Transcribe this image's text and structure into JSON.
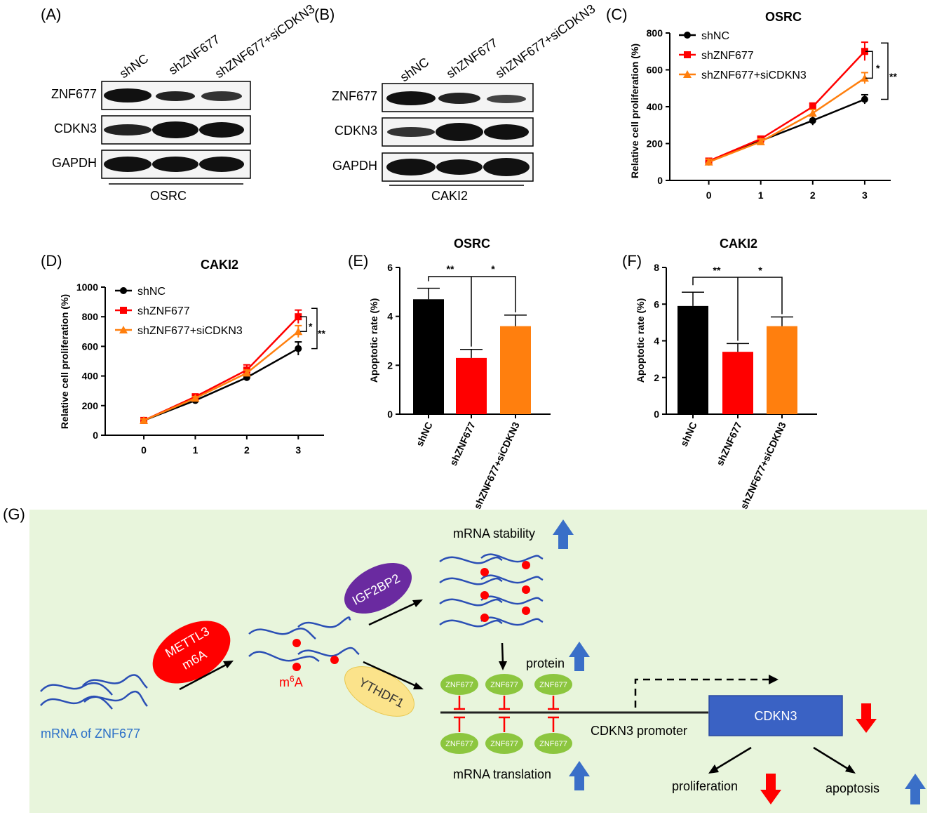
{
  "panels": {
    "A": "(A)",
    "B": "(B)",
    "C": "(C)",
    "D": "(D)",
    "E": "(E)",
    "F": "(F)",
    "G": "(G)"
  },
  "blots": [
    {
      "lanes": [
        "shNC",
        "shZNF677",
        "shZNF677+siCDKN3"
      ],
      "rows": [
        "ZNF677",
        "CDKN3",
        "GAPDH"
      ],
      "cell_line": "OSRC"
    },
    {
      "lanes": [
        "shNC",
        "shZNF677",
        "shZNF677+siCDKN3"
      ],
      "rows": [
        "ZNF677",
        "CDKN3",
        "GAPDH"
      ],
      "cell_line": "CAKI2"
    }
  ],
  "colors": {
    "shNC": "#000000",
    "shZNF677": "#ff0000",
    "siCDKN3": "#ff7f0e",
    "diagram_bg": "#e8f5dc",
    "mrna": "#2b4fb5",
    "m6a": "#ff0000",
    "znf_node": "#8cc63f",
    "cdkn3_box": "#3a62c4",
    "up_arrow": "#3a6fc8",
    "down_arrow": "#ff0000"
  },
  "chart_data": [
    {
      "panel": "C",
      "type": "line",
      "title": "OSRC",
      "ylabel": "Relative cell proliferation (%)",
      "x": [
        0,
        1,
        2,
        3
      ],
      "ylim": [
        0,
        800
      ],
      "yticks": [
        0,
        200,
        400,
        600,
        800
      ],
      "series": [
        {
          "name": "shNC",
          "values": [
            100,
            215,
            325,
            440
          ],
          "err": [
            15,
            15,
            25,
            25
          ]
        },
        {
          "name": "shZNF677",
          "values": [
            105,
            225,
            400,
            700
          ],
          "err": [
            15,
            15,
            20,
            50
          ]
        },
        {
          "name": "shZNF677+siCDKN3",
          "values": [
            100,
            210,
            365,
            555
          ],
          "err": [
            15,
            15,
            20,
            30
          ]
        }
      ],
      "significance": [
        {
          "label": "*",
          "between": "shZNF677 vs shZNF677+siCDKN3"
        },
        {
          "label": "**",
          "between": "shZNF677 vs shNC"
        }
      ]
    },
    {
      "panel": "D",
      "type": "line",
      "title": "CAKI2",
      "ylabel": "Relative cell proliferation (%)",
      "x": [
        0,
        1,
        2,
        3
      ],
      "ylim": [
        0,
        1000
      ],
      "yticks": [
        0,
        200,
        400,
        600,
        800,
        1000
      ],
      "series": [
        {
          "name": "shNC",
          "values": [
            100,
            235,
            390,
            585
          ],
          "err": [
            10,
            10,
            20,
            45
          ]
        },
        {
          "name": "shZNF677",
          "values": [
            100,
            260,
            440,
            800
          ],
          "err": [
            10,
            10,
            35,
            45
          ]
        },
        {
          "name": "shZNF677+siCDKN3",
          "values": [
            100,
            250,
            420,
            700
          ],
          "err": [
            10,
            10,
            20,
            40
          ]
        }
      ],
      "significance": [
        {
          "label": "*",
          "between": "shZNF677 vs shZNF677+siCDKN3"
        },
        {
          "label": "**",
          "between": "shZNF677 vs shNC"
        }
      ]
    },
    {
      "panel": "E",
      "type": "bar",
      "title": "OSRC",
      "ylabel": "Apoptotic rate (%)",
      "categories": [
        "shNC",
        "shZNF677",
        "shZNF677+siCDKN3"
      ],
      "values": [
        4.7,
        2.3,
        3.6
      ],
      "err": [
        0.45,
        0.35,
        0.45
      ],
      "ylim": [
        0,
        6
      ],
      "yticks": [
        0,
        2,
        4,
        6
      ],
      "significance": [
        {
          "label": "**",
          "between": "shNC vs shZNF677"
        },
        {
          "label": "*",
          "between": "shZNF677 vs shZNF677+siCDKN3"
        }
      ]
    },
    {
      "panel": "F",
      "type": "bar",
      "title": "CAKI2",
      "ylabel": "Apoptotic rate (%)",
      "categories": [
        "shNC",
        "shZNF677",
        "shZNF677+siCDKN3"
      ],
      "values": [
        5.9,
        3.4,
        4.8
      ],
      "err": [
        0.75,
        0.45,
        0.5
      ],
      "ylim": [
        0,
        8
      ],
      "yticks": [
        0,
        2,
        4,
        6,
        8
      ],
      "significance": [
        {
          "label": "**",
          "between": "shNC vs shZNF677"
        },
        {
          "label": "*",
          "between": "shZNF677 vs shZNF677+siCDKN3"
        }
      ]
    }
  ],
  "diagram": {
    "mettl3": "METTL3",
    "m6a_sub": "m6A",
    "m6a_label_m": "m",
    "m6a_label_sup": "6",
    "m6a_label_a": "A",
    "mrna_label": "mRNA of ZNF677",
    "igf2bp2": "IGF2BP2",
    "ythdf1": "YTHDF1",
    "stability": "mRNA stability",
    "protein": "protein",
    "translation": "mRNA translation",
    "znf_node": "ZNF677",
    "promoter": "CDKN3 promoter",
    "cdkn3": "CDKN3",
    "proliferation": "proliferation",
    "apoptosis": "apoptosis"
  }
}
